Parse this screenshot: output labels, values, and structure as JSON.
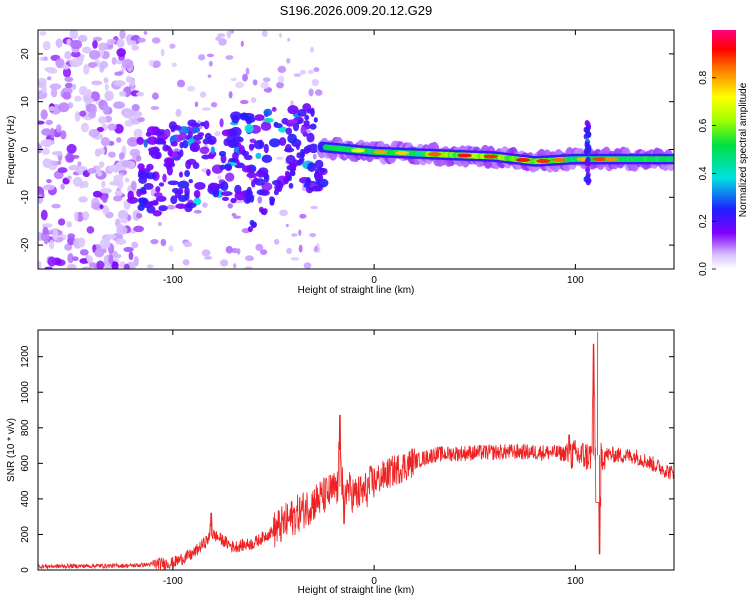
{
  "title": "S196.2026.009.20.12.G29",
  "chart_data": [
    {
      "type": "heatmap",
      "id": "spectrogram",
      "xlabel": "Height of straight line (km)",
      "ylabel": "Frequency (Hz)",
      "xlim": [
        -167,
        149
      ],
      "ylim": [
        -25,
        25
      ],
      "x_ticks": [
        -100,
        0,
        100
      ],
      "y_ticks": [
        -20,
        -10,
        0,
        10,
        20
      ],
      "colorbar": {
        "label": "Normalized spectral amplitude",
        "range": [
          0,
          1
        ],
        "ticks": [
          0.0,
          0.2,
          0.4,
          0.6,
          0.8
        ]
      },
      "features": {
        "main_band_center_hz": [
          [
            -25,
            0.5
          ],
          [
            0,
            -0.5
          ],
          [
            30,
            -1.0
          ],
          [
            60,
            -1.5
          ],
          [
            80,
            -2.5
          ],
          [
            100,
            -2.0
          ],
          [
            149,
            -2.0
          ]
        ],
        "spike_x_km": 106
      }
    },
    {
      "type": "line",
      "id": "snr",
      "xlabel": "Height of straight line (km)",
      "ylabel": "SNR (10 * v/v)",
      "xlim": [
        -167,
        149
      ],
      "ylim": [
        0,
        1350
      ],
      "x_ticks": [
        -100,
        0,
        100
      ],
      "y_ticks": [
        0,
        200,
        400,
        600,
        800,
        1000,
        1200
      ],
      "color": "#ee2222",
      "trend": [
        [
          -167,
          20
        ],
        [
          -120,
          25
        ],
        [
          -100,
          40
        ],
        [
          -90,
          90
        ],
        [
          -80,
          200
        ],
        [
          -70,
          130
        ],
        [
          -60,
          150
        ],
        [
          -50,
          220
        ],
        [
          -40,
          300
        ],
        [
          -30,
          380
        ],
        [
          -20,
          450
        ],
        [
          -15,
          480
        ],
        [
          -10,
          420
        ],
        [
          -5,
          440
        ],
        [
          0,
          500
        ],
        [
          10,
          560
        ],
        [
          20,
          610
        ],
        [
          30,
          650
        ],
        [
          50,
          660
        ],
        [
          70,
          665
        ],
        [
          90,
          660
        ],
        [
          105,
          640
        ],
        [
          115,
          650
        ],
        [
          130,
          640
        ],
        [
          149,
          540
        ]
      ],
      "peaks": [
        [
          -81,
          320
        ],
        [
          -17,
          870
        ],
        [
          -15,
          260
        ],
        [
          97,
          760
        ],
        [
          109,
          1270
        ],
        [
          111,
          1340
        ],
        [
          112,
          90
        ]
      ]
    }
  ]
}
